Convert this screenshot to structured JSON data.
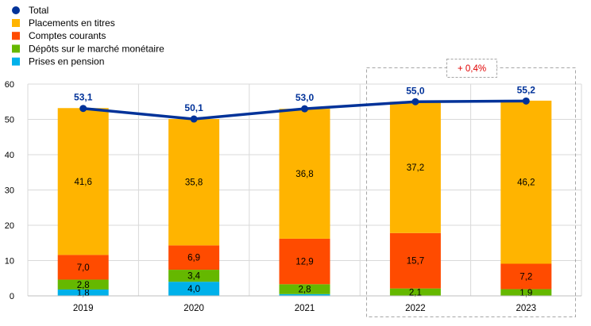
{
  "chart_data": {
    "type": "bar",
    "stacked": true,
    "categories": [
      "2019",
      "2020",
      "2021",
      "2022",
      "2023"
    ],
    "ylim": [
      0,
      60
    ],
    "yticks": [
      0,
      10,
      20,
      30,
      40,
      50,
      60
    ],
    "grid": true,
    "legend_position": "top-left",
    "series": [
      {
        "name": "Prises en pension",
        "color": "#00B1EA",
        "values": [
          1.8,
          4.0,
          0.5,
          0,
          0
        ],
        "labels": [
          "1,8",
          "4,0",
          "",
          "",
          ""
        ]
      },
      {
        "name": "Dépôts sur le marché monétaire",
        "color": "#65B800",
        "values": [
          2.8,
          3.4,
          2.8,
          2.1,
          1.9
        ],
        "labels": [
          "2,8",
          "3,4",
          "2,8",
          "2,1",
          "1,9"
        ]
      },
      {
        "name": "Comptes courants",
        "color": "#FF4B00",
        "values": [
          7.0,
          6.9,
          12.9,
          15.7,
          7.2
        ],
        "labels": [
          "7,0",
          "6,9",
          "12,9",
          "15,7",
          "7,2"
        ]
      },
      {
        "name": "Placements en titres",
        "color": "#FFB400",
        "values": [
          41.6,
          35.8,
          36.8,
          37.2,
          46.2
        ],
        "labels": [
          "41,6",
          "35,8",
          "36,8",
          "37,2",
          "46,2"
        ]
      }
    ],
    "line": {
      "name": "Total",
      "color": "#003299",
      "values": [
        53.1,
        50.1,
        53.0,
        55.0,
        55.2
      ],
      "labels": [
        "53,1",
        "50,1",
        "53,0",
        "55,0",
        "55,2"
      ]
    },
    "annotation": {
      "text": "+ 0,4%",
      "color": "#E00000",
      "highlight_categories": [
        "2022",
        "2023"
      ]
    }
  }
}
